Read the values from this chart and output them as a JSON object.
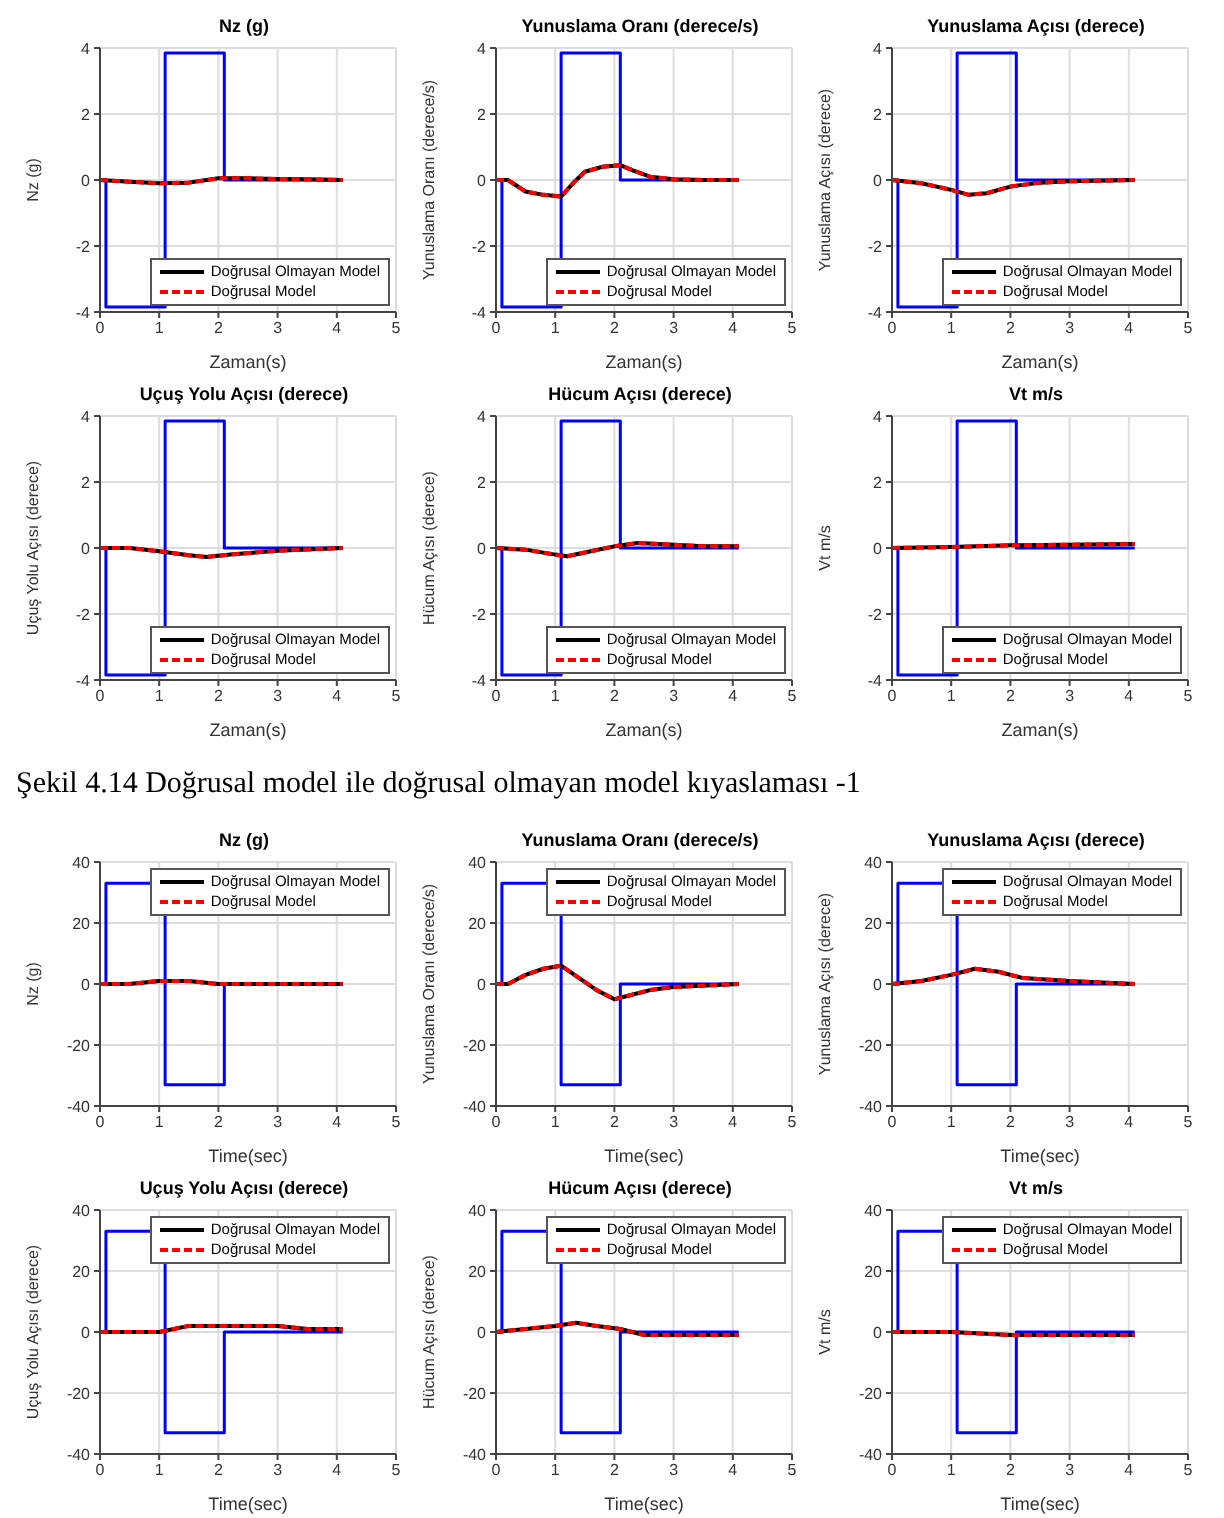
{
  "chart_data": [
    {
      "type": "line",
      "title": "Nz (g)",
      "xlabel": "Zaman(s)",
      "ylabel": "Nz (g)",
      "xlim": [
        0,
        5
      ],
      "xticks": [
        0,
        1,
        2,
        3,
        4,
        5
      ],
      "ylim": [
        -4,
        4
      ],
      "yticks": [
        -4,
        -2,
        0,
        2,
        4
      ],
      "grid": true,
      "legend": "bottom right",
      "marker": "none",
      "series": [
        {
          "type": "step",
          "color": "#0000ff",
          "x": [
            0,
            0.1,
            1.1,
            2.1,
            4.1
          ],
          "values": [
            0,
            -3.85,
            3.85,
            0,
            0
          ]
        },
        {
          "name": "Doğrusal Olmayan Model",
          "color": "#000000",
          "line_style": "solid",
          "x": [
            0,
            0.5,
            1,
            1.5,
            2,
            2.5,
            3,
            3.5,
            4.1
          ],
          "values": [
            0,
            -0.05,
            -0.1,
            -0.08,
            0.05,
            0.05,
            0.03,
            0.02,
            0
          ]
        },
        {
          "name": "Doğrusal Model",
          "color": "#ff0000",
          "line_style": "dashed",
          "x": [
            0,
            0.5,
            1,
            1.5,
            2,
            2.5,
            3,
            3.5,
            4.1
          ],
          "values": [
            0,
            -0.05,
            -0.1,
            -0.08,
            0.05,
            0.05,
            0.03,
            0.02,
            0
          ]
        }
      ]
    },
    {
      "type": "line",
      "title": "Yunuslama Oranı (derece/s)",
      "xlabel": "Zaman(s)",
      "ylabel": "Yunuslama Oranı (derece/s)",
      "xlim": [
        0,
        5
      ],
      "xticks": [
        0,
        1,
        2,
        3,
        4,
        5
      ],
      "ylim": [
        -4,
        4
      ],
      "yticks": [
        -4,
        -2,
        0,
        2,
        4
      ],
      "grid": true,
      "legend": "bottom right",
      "marker": "none",
      "series": [
        {
          "type": "step",
          "color": "#0000ff",
          "x": [
            0,
            0.1,
            1.1,
            2.1,
            4.1
          ],
          "values": [
            0,
            -3.85,
            3.85,
            0,
            0
          ]
        },
        {
          "name": "Doğrusal Olmayan Model",
          "color": "#000000",
          "line_style": "solid",
          "x": [
            0,
            0.2,
            0.5,
            0.8,
            1.1,
            1.3,
            1.5,
            1.8,
            2.1,
            2.3,
            2.6,
            3,
            3.5,
            4.1
          ],
          "values": [
            0,
            0,
            -0.35,
            -0.45,
            -0.5,
            -0.1,
            0.25,
            0.4,
            0.45,
            0.3,
            0.1,
            0.02,
            0,
            0
          ]
        },
        {
          "name": "Doğrusal Model",
          "color": "#ff0000",
          "line_style": "dashed",
          "x": [
            0,
            0.2,
            0.5,
            0.8,
            1.1,
            1.3,
            1.5,
            1.8,
            2.1,
            2.3,
            2.6,
            3,
            3.5,
            4.1
          ],
          "values": [
            0,
            0,
            -0.35,
            -0.45,
            -0.5,
            -0.1,
            0.25,
            0.4,
            0.45,
            0.3,
            0.1,
            0.02,
            0,
            0
          ]
        }
      ]
    },
    {
      "type": "line",
      "title": "Yunuslama Açısı (derece)",
      "xlabel": "Zaman(s)",
      "ylabel": "Yunuslama Açısı (derece)",
      "xlim": [
        0,
        5
      ],
      "xticks": [
        0,
        1,
        2,
        3,
        4,
        5
      ],
      "ylim": [
        -4,
        4
      ],
      "yticks": [
        -4,
        -2,
        0,
        2,
        4
      ],
      "grid": true,
      "legend": "bottom right",
      "marker": "none",
      "series": [
        {
          "type": "step",
          "color": "#0000ff",
          "x": [
            0,
            0.1,
            1.1,
            2.1,
            4.1
          ],
          "values": [
            0,
            -3.85,
            3.85,
            0,
            0
          ]
        },
        {
          "name": "Doğrusal Olmayan Model",
          "color": "#000000",
          "line_style": "solid",
          "x": [
            0,
            0.5,
            1,
            1.3,
            1.6,
            2,
            2.5,
            3,
            4.1
          ],
          "values": [
            0,
            -0.1,
            -0.3,
            -0.45,
            -0.4,
            -0.2,
            -0.08,
            -0.04,
            0
          ]
        },
        {
          "name": "Doğrusal Model",
          "color": "#ff0000",
          "line_style": "dashed",
          "x": [
            0,
            0.5,
            1,
            1.3,
            1.6,
            2,
            2.5,
            3,
            4.1
          ],
          "values": [
            0,
            -0.1,
            -0.3,
            -0.45,
            -0.4,
            -0.2,
            -0.08,
            -0.04,
            0
          ]
        }
      ]
    },
    {
      "type": "line",
      "title": "Uçuş Yolu Açısı (derece)",
      "xlabel": "Zaman(s)",
      "ylabel": "Uçuş Yolu Açısı (derece)",
      "xlim": [
        0,
        5
      ],
      "xticks": [
        0,
        1,
        2,
        3,
        4,
        5
      ],
      "ylim": [
        -4,
        4
      ],
      "yticks": [
        -4,
        -2,
        0,
        2,
        4
      ],
      "grid": true,
      "legend": "bottom right",
      "marker": "none",
      "series": [
        {
          "type": "step",
          "color": "#0000ff",
          "x": [
            0,
            0.1,
            1.1,
            2.1,
            4.1
          ],
          "values": [
            0,
            -3.85,
            3.85,
            0,
            0
          ]
        },
        {
          "name": "Doğrusal Olmayan Model",
          "color": "#000000",
          "line_style": "solid",
          "x": [
            0,
            0.5,
            1,
            1.5,
            1.8,
            2.2,
            3,
            4.1
          ],
          "values": [
            0,
            0,
            -0.1,
            -0.22,
            -0.27,
            -0.2,
            -0.08,
            0
          ]
        },
        {
          "name": "Doğrusal Model",
          "color": "#ff0000",
          "line_style": "dashed",
          "x": [
            0,
            0.5,
            1,
            1.5,
            1.8,
            2.2,
            3,
            4.1
          ],
          "values": [
            0,
            0,
            -0.1,
            -0.22,
            -0.27,
            -0.2,
            -0.08,
            0
          ]
        }
      ]
    },
    {
      "type": "line",
      "title": "Hücum Açısı (derece)",
      "xlabel": "Zaman(s)",
      "ylabel": "Hücum Açısı (derece)",
      "xlim": [
        0,
        5
      ],
      "xticks": [
        0,
        1,
        2,
        3,
        4,
        5
      ],
      "ylim": [
        -4,
        4
      ],
      "yticks": [
        -4,
        -2,
        0,
        2,
        4
      ],
      "grid": true,
      "legend": "bottom right",
      "marker": "none",
      "series": [
        {
          "type": "step",
          "color": "#0000ff",
          "x": [
            0,
            0.1,
            1.1,
            2.1,
            4.1
          ],
          "values": [
            0,
            -3.85,
            3.85,
            0,
            0
          ]
        },
        {
          "name": "Doğrusal Olmayan Model",
          "color": "#000000",
          "line_style": "solid",
          "x": [
            0,
            0.5,
            1,
            1.2,
            1.6,
            2,
            2.4,
            3,
            3.5,
            4.1
          ],
          "values": [
            0,
            -0.05,
            -0.2,
            -0.25,
            -0.1,
            0.05,
            0.15,
            0.1,
            0.05,
            0.05
          ]
        },
        {
          "name": "Doğrusal Model",
          "color": "#ff0000",
          "line_style": "dashed",
          "x": [
            0,
            0.5,
            1,
            1.2,
            1.6,
            2,
            2.4,
            3,
            3.5,
            4.1
          ],
          "values": [
            0,
            -0.05,
            -0.2,
            -0.25,
            -0.1,
            0.05,
            0.15,
            0.1,
            0.05,
            0.05
          ]
        }
      ]
    },
    {
      "type": "line",
      "title": "Vt m/s",
      "xlabel": "Zaman(s)",
      "ylabel": "Vt m/s",
      "xlim": [
        0,
        5
      ],
      "xticks": [
        0,
        1,
        2,
        3,
        4,
        5
      ],
      "ylim": [
        -4,
        4
      ],
      "yticks": [
        -4,
        -2,
        0,
        2,
        4
      ],
      "grid": true,
      "legend": "bottom right",
      "marker": "none",
      "annotations": [
        "Şekil 4.14 Doğrusal model ile doğrusal olmayan model kıyaslaması -1"
      ],
      "series": [
        {
          "type": "step",
          "color": "#0000ff",
          "x": [
            0,
            0.1,
            1.1,
            2.1,
            4.1
          ],
          "values": [
            0,
            -3.85,
            3.85,
            0,
            0
          ]
        },
        {
          "name": "Doğrusal Olmayan Model",
          "color": "#000000",
          "line_style": "solid",
          "x": [
            0,
            1,
            2,
            3,
            4.1
          ],
          "values": [
            0,
            0.03,
            0.08,
            0.1,
            0.12
          ]
        },
        {
          "name": "Doğrusal Model",
          "color": "#ff0000",
          "line_style": "dashed",
          "x": [
            0,
            1,
            2,
            3,
            4.1
          ],
          "values": [
            0,
            0.03,
            0.08,
            0.1,
            0.12
          ]
        }
      ]
    },
    {
      "type": "line",
      "title": "Nz (g)",
      "xlabel": "Time(sec)",
      "ylabel": "Nz (g)",
      "xlim": [
        0,
        5
      ],
      "xticks": [
        0,
        1,
        2,
        3,
        4,
        5
      ],
      "ylim": [
        -40,
        40
      ],
      "yticks": [
        -40,
        -20,
        0,
        20,
        40
      ],
      "grid": true,
      "legend": "top right",
      "marker": "none",
      "series": [
        {
          "type": "step",
          "color": "#0000ff",
          "x": [
            0,
            0.1,
            1.1,
            2.1,
            4.1
          ],
          "values": [
            0,
            33,
            -33,
            0,
            0
          ]
        },
        {
          "name": "Doğrusal Olmayan Model",
          "color": "#000000",
          "line_style": "solid",
          "x": [
            0,
            0.5,
            1,
            1.5,
            2,
            2.5,
            3,
            4.1
          ],
          "values": [
            0,
            0,
            1,
            1,
            0,
            0,
            0,
            0
          ]
        },
        {
          "name": "Doğrusal Model",
          "color": "#ff0000",
          "line_style": "dashed",
          "x": [
            0,
            0.5,
            1,
            1.5,
            2,
            2.5,
            3,
            4.1
          ],
          "values": [
            0,
            0,
            1,
            1,
            0,
            0,
            0,
            0
          ]
        }
      ]
    },
    {
      "type": "line",
      "title": "Yunuslama Oranı (derece/s)",
      "xlabel": "Time(sec)",
      "ylabel": "Yunuslama Oranı (derece/s)",
      "xlim": [
        0,
        5
      ],
      "xticks": [
        0,
        1,
        2,
        3,
        4,
        5
      ],
      "ylim": [
        -40,
        40
      ],
      "yticks": [
        -40,
        -20,
        0,
        20,
        40
      ],
      "grid": true,
      "legend": "top right",
      "marker": "none",
      "series": [
        {
          "type": "step",
          "color": "#0000ff",
          "x": [
            0,
            0.1,
            1.1,
            2.1,
            4.1
          ],
          "values": [
            0,
            33,
            -33,
            0,
            0
          ]
        },
        {
          "name": "Doğrusal Olmayan Model",
          "color": "#000000",
          "line_style": "solid",
          "x": [
            0,
            0.2,
            0.5,
            0.8,
            1.1,
            1.4,
            1.7,
            2,
            2.2,
            2.6,
            3,
            4.1
          ],
          "values": [
            0,
            0,
            3,
            5,
            6,
            2,
            -2,
            -5,
            -4,
            -2,
            -1,
            0
          ]
        },
        {
          "name": "Doğrusal Model",
          "color": "#ff0000",
          "line_style": "dashed",
          "x": [
            0,
            0.2,
            0.5,
            0.8,
            1.1,
            1.4,
            1.7,
            2,
            2.2,
            2.6,
            3,
            4.1
          ],
          "values": [
            0,
            0,
            3,
            5,
            6,
            2,
            -2,
            -5,
            -4,
            -2,
            -1,
            0
          ]
        }
      ]
    },
    {
      "type": "line",
      "title": "Yunuslama Açısı (derece)",
      "xlabel": "Time(sec)",
      "ylabel": "Yunuslama Açısı (derece)",
      "xlim": [
        0,
        5
      ],
      "xticks": [
        0,
        1,
        2,
        3,
        4,
        5
      ],
      "ylim": [
        -40,
        40
      ],
      "yticks": [
        -40,
        -20,
        0,
        20,
        40
      ],
      "grid": true,
      "legend": "top right",
      "marker": "none",
      "series": [
        {
          "type": "step",
          "color": "#0000ff",
          "x": [
            0,
            0.1,
            1.1,
            2.1,
            4.1
          ],
          "values": [
            0,
            33,
            -33,
            0,
            0
          ]
        },
        {
          "name": "Doğrusal Olmayan Model",
          "color": "#000000",
          "line_style": "solid",
          "x": [
            0,
            0.5,
            1,
            1.4,
            1.8,
            2.2,
            3,
            4.1
          ],
          "values": [
            0,
            1,
            3,
            5,
            4,
            2,
            1,
            0
          ]
        },
        {
          "name": "Doğrusal Model",
          "color": "#ff0000",
          "line_style": "dashed",
          "x": [
            0,
            0.5,
            1,
            1.4,
            1.8,
            2.2,
            3,
            4.1
          ],
          "values": [
            0,
            1,
            3,
            5,
            4,
            2,
            1,
            0
          ]
        }
      ]
    },
    {
      "type": "line",
      "title": "Uçuş Yolu Açısı (derece)",
      "xlabel": "Time(sec)",
      "ylabel": "Uçuş Yolu Açısı (derece)",
      "xlim": [
        0,
        5
      ],
      "xticks": [
        0,
        1,
        2,
        3,
        4,
        5
      ],
      "ylim": [
        -40,
        40
      ],
      "yticks": [
        -40,
        -20,
        0,
        20,
        40
      ],
      "grid": true,
      "legend": "top right",
      "marker": "none",
      "series": [
        {
          "type": "step",
          "color": "#0000ff",
          "x": [
            0,
            0.1,
            1.1,
            2.1,
            4.1
          ],
          "values": [
            0,
            33,
            -33,
            0,
            0
          ]
        },
        {
          "name": "Doğrusal Olmayan Model",
          "color": "#000000",
          "line_style": "solid",
          "x": [
            0,
            0.5,
            1,
            1.5,
            2,
            2.5,
            3,
            3.5,
            4.1
          ],
          "values": [
            0,
            0,
            0,
            2,
            2,
            2,
            2,
            1,
            1
          ]
        },
        {
          "name": "Doğrusal Model",
          "color": "#ff0000",
          "line_style": "dashed",
          "x": [
            0,
            0.5,
            1,
            1.5,
            2,
            2.5,
            3,
            3.5,
            4.1
          ],
          "values": [
            0,
            0,
            0,
            2,
            2,
            2,
            2,
            1,
            1
          ]
        }
      ]
    },
    {
      "type": "line",
      "title": "Hücum Açısı (derece)",
      "xlabel": "Time(sec)",
      "ylabel": "Hücum Açısı (derece)",
      "xlim": [
        0,
        5
      ],
      "xticks": [
        0,
        1,
        2,
        3,
        4,
        5
      ],
      "ylim": [
        -40,
        40
      ],
      "yticks": [
        -40,
        -20,
        0,
        20,
        40
      ],
      "grid": true,
      "legend": "top right",
      "marker": "none",
      "series": [
        {
          "type": "step",
          "color": "#0000ff",
          "x": [
            0,
            0.1,
            1.1,
            2.1,
            4.1
          ],
          "values": [
            0,
            33,
            -33,
            0,
            0
          ]
        },
        {
          "name": "Doğrusal Olmayan Model",
          "color": "#000000",
          "line_style": "solid",
          "x": [
            0,
            0.5,
            1,
            1.35,
            1.7,
            2.1,
            2.5,
            3,
            4.1
          ],
          "values": [
            0,
            1,
            2,
            3,
            2,
            1,
            -1,
            -1,
            -1
          ]
        },
        {
          "name": "Doğrusal Model",
          "color": "#ff0000",
          "line_style": "dashed",
          "x": [
            0,
            0.5,
            1,
            1.35,
            1.7,
            2.1,
            2.5,
            3,
            4.1
          ],
          "values": [
            0,
            1,
            2,
            3,
            2,
            1,
            -1,
            -1,
            -1
          ]
        }
      ]
    },
    {
      "type": "line",
      "title": "Vt m/s",
      "xlabel": "Time(sec)",
      "ylabel": "Vt m/s",
      "xlim": [
        0,
        5
      ],
      "xticks": [
        0,
        1,
        2,
        3,
        4,
        5
      ],
      "ylim": [
        -40,
        40
      ],
      "yticks": [
        -40,
        -20,
        0,
        20,
        40
      ],
      "grid": true,
      "legend": "top right",
      "marker": "none",
      "series": [
        {
          "type": "step",
          "color": "#0000ff",
          "x": [
            0,
            0.1,
            1.1,
            2.1,
            4.1
          ],
          "values": [
            0,
            33,
            -33,
            0,
            0
          ]
        },
        {
          "name": "Doğrusal Olmayan Model",
          "color": "#000000",
          "line_style": "solid",
          "x": [
            0,
            1,
            2,
            3,
            4.1
          ],
          "values": [
            0,
            0,
            -1,
            -1,
            -1
          ]
        },
        {
          "name": "Doğrusal Model",
          "color": "#ff0000",
          "line_style": "dashed",
          "x": [
            0,
            1,
            2,
            3,
            4.1
          ],
          "values": [
            0,
            0,
            -1,
            -1,
            -1
          ]
        }
      ]
    }
  ]
}
